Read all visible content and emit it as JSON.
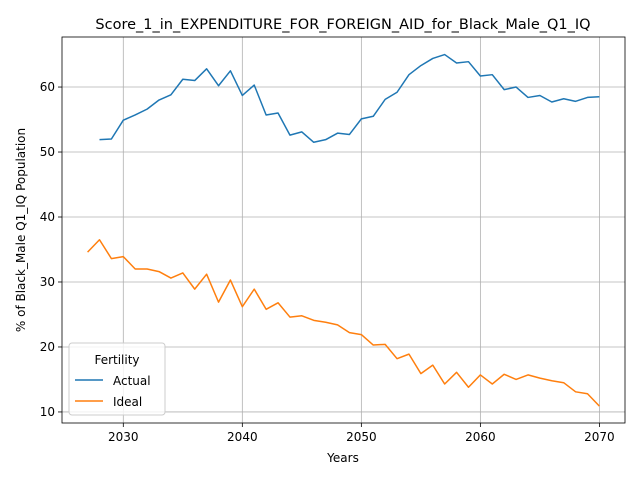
{
  "chart_data": {
    "type": "line",
    "title": "Score_1_in_EXPENDITURE_FOR_FOREIGN_AID_for_Black_Male_Q1_IQ",
    "xlabel": "Years",
    "ylabel": "% of Black_Male Q1_IQ Population",
    "xlim": [
      2024.85,
      2072.15
    ],
    "ylim": [
      8.3,
      67.7
    ],
    "x_ticks": [
      2030,
      2040,
      2050,
      2060,
      2070
    ],
    "y_ticks": [
      10,
      20,
      30,
      40,
      50,
      60
    ],
    "grid": true,
    "legend": {
      "title": "Fertility",
      "placement": "lower-left"
    },
    "series": [
      {
        "name": "Actual",
        "color": "#1f77b4",
        "x": [
          2028,
          2029,
          2030,
          2031,
          2032,
          2033,
          2034,
          2035,
          2036,
          2037,
          2038,
          2039,
          2040,
          2041,
          2042,
          2043,
          2044,
          2045,
          2046,
          2047,
          2048,
          2049,
          2050,
          2051,
          2052,
          2053,
          2054,
          2055,
          2056,
          2057,
          2058,
          2059,
          2060,
          2061,
          2062,
          2063,
          2064,
          2065,
          2066,
          2067,
          2068,
          2069,
          2070
        ],
        "values": [
          51.9,
          52.0,
          54.9,
          55.7,
          56.6,
          58.0,
          58.8,
          61.2,
          61.0,
          62.8,
          60.2,
          62.5,
          58.7,
          60.3,
          55.7,
          56.0,
          52.6,
          53.1,
          51.5,
          51.9,
          52.9,
          52.7,
          55.1,
          55.5,
          58.1,
          59.2,
          61.9,
          63.3,
          64.4,
          65.0,
          63.7,
          63.9,
          61.7,
          61.9,
          59.6,
          60.0,
          58.4,
          58.7,
          57.7,
          58.2,
          57.8,
          58.4,
          58.5
        ]
      },
      {
        "name": "Ideal",
        "color": "#ff7f0e",
        "x": [
          2027,
          2028,
          2029,
          2030,
          2031,
          2032,
          2033,
          2034,
          2035,
          2036,
          2037,
          2038,
          2039,
          2040,
          2041,
          2042,
          2043,
          2044,
          2045,
          2046,
          2047,
          2048,
          2049,
          2050,
          2051,
          2052,
          2053,
          2054,
          2055,
          2056,
          2057,
          2058,
          2059,
          2060,
          2061,
          2062,
          2063,
          2064,
          2065,
          2066,
          2067,
          2068,
          2069,
          2070
        ],
        "values": [
          34.6,
          36.5,
          33.6,
          33.9,
          32.0,
          32.0,
          31.6,
          30.6,
          31.4,
          28.9,
          31.2,
          26.9,
          30.3,
          26.2,
          28.9,
          25.8,
          26.8,
          24.6,
          24.8,
          24.1,
          23.8,
          23.4,
          22.2,
          21.9,
          20.3,
          20.4,
          18.2,
          18.9,
          15.9,
          17.2,
          14.3,
          16.1,
          13.8,
          15.7,
          14.3,
          15.8,
          15.0,
          15.7,
          15.2,
          14.8,
          14.5,
          13.1,
          12.8,
          10.9
        ]
      }
    ]
  }
}
